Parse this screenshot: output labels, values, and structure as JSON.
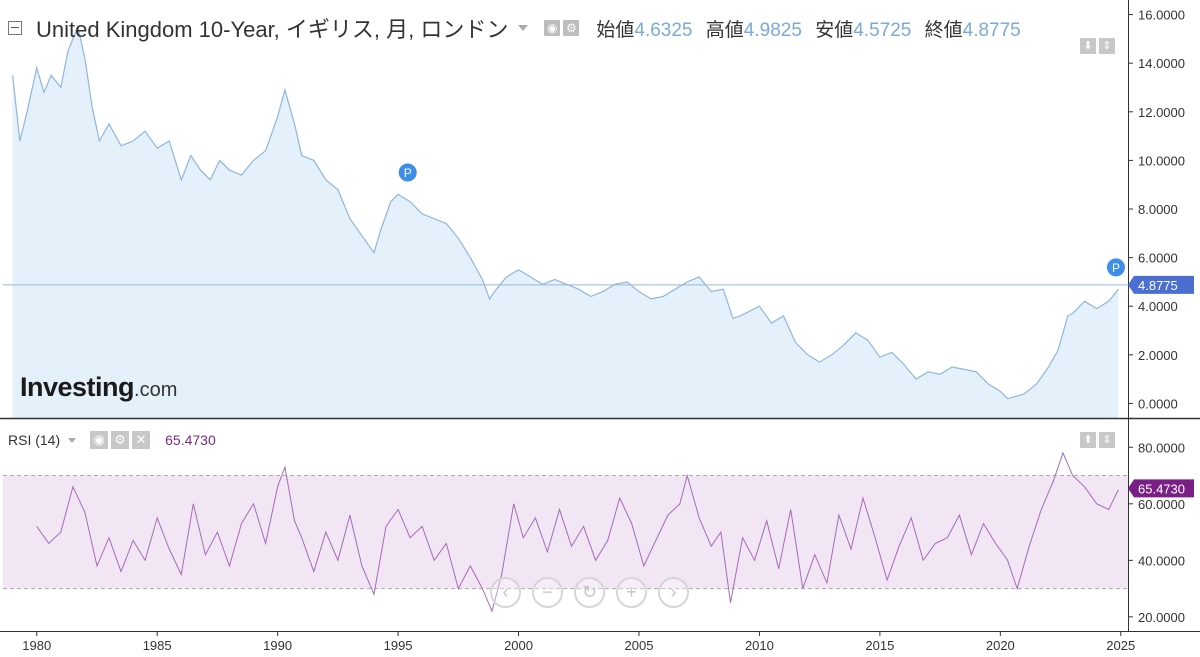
{
  "header": {
    "title": "United Kingdom 10-Year, イギリス, 月, ロンドン",
    "open_label": "始値",
    "open": "4.6325",
    "high_label": "高値",
    "high": "4.9825",
    "low_label": "安値",
    "low": "4.5725",
    "close_label": "終値",
    "close": "4.8775"
  },
  "rsi_header": {
    "name": "RSI (14)",
    "value": "65.4730"
  },
  "logo": {
    "main": "Investing",
    "suffix": ".com"
  },
  "nav_icons": [
    "chevron-left-icon",
    "minus-icon",
    "reset-icon",
    "plus-icon",
    "chevron-right-icon"
  ],
  "colors": {
    "price_line": "#8fb6dc",
    "price_fill": "#e4f0fa",
    "rsi_line": "#a36cb5",
    "rsi_band": "#f2e6f5",
    "last_price_tag": "#4a6fd1",
    "rsi_tag": "#7a1f86",
    "marker": "#3d8ee8"
  },
  "chart_data": [
    {
      "type": "area",
      "title": "United Kingdom 10-Year, イギリス, 月, ロンドン",
      "x_ticks": [
        1980,
        1985,
        1990,
        1995,
        2000,
        2005,
        2010,
        2015,
        2020,
        2025
      ],
      "y_ticks": [
        "16.0000",
        "14.0000",
        "12.0000",
        "10.0000",
        "8.0000",
        "6.0000",
        "4.0000",
        "2.0000",
        "0.0000"
      ],
      "ylim": [
        -0.6,
        16.6
      ],
      "xlim": [
        1978.6,
        2025.3
      ],
      "last_value": "4.8775",
      "markers": [
        {
          "label": "P",
          "x": 1995.4,
          "y": 9.5
        },
        {
          "label": "P",
          "x": 2024.8,
          "y": 5.6
        }
      ],
      "series": [
        {
          "x": [
            1979.0,
            1979.3,
            1979.6,
            1980.0,
            1980.3,
            1980.6,
            1981.0,
            1981.3,
            1981.7,
            1982.0,
            1982.3,
            1982.6,
            1983.0,
            1983.5,
            1984.0,
            1984.5,
            1985.0,
            1985.5,
            1986.0,
            1986.4,
            1986.8,
            1987.2,
            1987.6,
            1988.0,
            1988.5,
            1989.0,
            1989.5,
            1990.0,
            1990.3,
            1990.7,
            1991.0,
            1991.5,
            1992.0,
            1992.5,
            1993.0,
            1993.5,
            1994.0,
            1994.3,
            1994.7,
            1995.0,
            1995.5,
            1996.0,
            1996.5,
            1997.0,
            1997.5,
            1998.0,
            1998.5,
            1998.8,
            1999.0,
            1999.5,
            2000.0,
            2000.5,
            2001.0,
            2001.5,
            2002.0,
            2002.5,
            2003.0,
            2003.5,
            2004.0,
            2004.5,
            2005.0,
            2005.5,
            2006.0,
            2006.5,
            2007.0,
            2007.5,
            2008.0,
            2008.5,
            2008.9,
            2009.2,
            2009.6,
            2010.0,
            2010.5,
            2011.0,
            2011.5,
            2012.0,
            2012.5,
            2013.0,
            2013.5,
            2014.0,
            2014.5,
            2015.0,
            2015.5,
            2016.0,
            2016.5,
            2017.0,
            2017.5,
            2018.0,
            2018.5,
            2019.0,
            2019.5,
            2020.0,
            2020.3,
            2020.7,
            2021.0,
            2021.5,
            2022.0,
            2022.4,
            2022.8,
            2023.0,
            2023.5,
            2024.0,
            2024.5,
            2024.9
          ],
          "values": [
            13.5,
            10.8,
            12.0,
            13.8,
            12.8,
            13.5,
            13.0,
            14.5,
            15.5,
            14.2,
            12.2,
            10.8,
            11.5,
            10.6,
            10.8,
            11.2,
            10.5,
            10.8,
            9.2,
            10.2,
            9.6,
            9.2,
            10.0,
            9.6,
            9.4,
            10.0,
            10.4,
            11.8,
            12.9,
            11.5,
            10.2,
            10.0,
            9.2,
            8.8,
            7.6,
            6.9,
            6.2,
            7.2,
            8.3,
            8.6,
            8.3,
            7.8,
            7.6,
            7.4,
            6.8,
            6.0,
            5.1,
            4.3,
            4.6,
            5.2,
            5.5,
            5.2,
            4.9,
            5.1,
            4.9,
            4.7,
            4.4,
            4.6,
            4.9,
            5.0,
            4.6,
            4.3,
            4.4,
            4.7,
            5.0,
            5.2,
            4.6,
            4.7,
            3.5,
            3.6,
            3.8,
            4.0,
            3.3,
            3.6,
            2.5,
            2.0,
            1.7,
            2.0,
            2.4,
            2.9,
            2.6,
            1.9,
            2.1,
            1.6,
            1.0,
            1.3,
            1.2,
            1.5,
            1.4,
            1.3,
            0.8,
            0.5,
            0.2,
            0.3,
            0.4,
            0.8,
            1.5,
            2.2,
            3.6,
            3.7,
            4.2,
            3.9,
            4.2,
            4.7
          ]
        }
      ]
    },
    {
      "type": "line",
      "title": "RSI (14)",
      "y_ticks": [
        "80.0000",
        "60.0000",
        "40.0000",
        "20.0000"
      ],
      "ylim": [
        15,
        90
      ],
      "band": [
        30,
        70
      ],
      "last_value": "65.4730",
      "series": [
        {
          "x": [
            1980.0,
            1980.5,
            1981.0,
            1981.5,
            1982.0,
            1982.5,
            1983.0,
            1983.5,
            1984.0,
            1984.5,
            1985.0,
            1985.5,
            1986.0,
            1986.5,
            1987.0,
            1987.5,
            1988.0,
            1988.5,
            1989.0,
            1989.5,
            1990.0,
            1990.3,
            1990.7,
            1991.0,
            1991.5,
            1992.0,
            1992.5,
            1993.0,
            1993.5,
            1994.0,
            1994.5,
            1995.0,
            1995.5,
            1996.0,
            1996.5,
            1997.0,
            1997.5,
            1998.0,
            1998.5,
            1998.9,
            1999.3,
            1999.8,
            2000.2,
            2000.7,
            2001.2,
            2001.7,
            2002.2,
            2002.7,
            2003.2,
            2003.7,
            2004.2,
            2004.7,
            2005.2,
            2005.7,
            2006.2,
            2006.7,
            2007.0,
            2007.5,
            2008.0,
            2008.4,
            2008.8,
            2009.3,
            2009.8,
            2010.3,
            2010.8,
            2011.3,
            2011.8,
            2012.3,
            2012.8,
            2013.3,
            2013.8,
            2014.3,
            2014.8,
            2015.3,
            2015.8,
            2016.3,
            2016.8,
            2017.3,
            2017.8,
            2018.3,
            2018.8,
            2019.3,
            2019.8,
            2020.3,
            2020.7,
            2021.2,
            2021.7,
            2022.2,
            2022.6,
            2023.0,
            2023.5,
            2024.0,
            2024.5,
            2024.9
          ],
          "values": [
            52,
            46,
            50,
            66,
            57,
            38,
            48,
            36,
            47,
            40,
            55,
            44,
            35,
            60,
            42,
            50,
            38,
            53,
            60,
            46,
            66,
            73,
            54,
            48,
            36,
            50,
            40,
            56,
            38,
            28,
            52,
            58,
            48,
            52,
            40,
            46,
            30,
            38,
            30,
            22,
            35,
            60,
            48,
            55,
            43,
            58,
            45,
            52,
            40,
            47,
            62,
            53,
            38,
            47,
            56,
            60,
            70,
            55,
            45,
            50,
            25,
            48,
            40,
            54,
            37,
            58,
            30,
            42,
            32,
            56,
            44,
            62,
            48,
            33,
            45,
            55,
            40,
            46,
            48,
            56,
            42,
            53,
            46,
            40,
            30,
            45,
            58,
            68,
            78,
            70,
            66,
            60,
            58,
            65
          ]
        }
      ]
    }
  ]
}
